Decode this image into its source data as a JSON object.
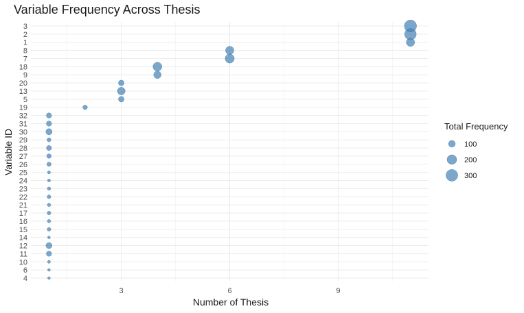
{
  "chart_data": {
    "type": "scatter",
    "title": "Variable Frequency Across Thesis",
    "xlabel": "Number of Thesis",
    "ylabel": "Variable ID",
    "xlim": [
      0.5,
      11.5
    ],
    "x_ticks": [
      3,
      6,
      9
    ],
    "y_categories": [
      "4",
      "6",
      "10",
      "11",
      "12",
      "14",
      "15",
      "16",
      "17",
      "21",
      "22",
      "23",
      "24",
      "25",
      "26",
      "27",
      "28",
      "29",
      "30",
      "31",
      "32",
      "19",
      "5",
      "13",
      "20",
      "9",
      "18",
      "7",
      "8",
      "1",
      "2",
      "3"
    ],
    "points": [
      {
        "id": "4",
        "x": 1,
        "freq": 10
      },
      {
        "id": "6",
        "x": 1,
        "freq": 15
      },
      {
        "id": "10",
        "x": 1,
        "freq": 20
      },
      {
        "id": "11",
        "x": 1,
        "freq": 60
      },
      {
        "id": "12",
        "x": 1,
        "freq": 80
      },
      {
        "id": "14",
        "x": 1,
        "freq": 12
      },
      {
        "id": "15",
        "x": 1,
        "freq": 30
      },
      {
        "id": "16",
        "x": 1,
        "freq": 25
      },
      {
        "id": "17",
        "x": 1,
        "freq": 30
      },
      {
        "id": "21",
        "x": 1,
        "freq": 25
      },
      {
        "id": "22",
        "x": 1,
        "freq": 30
      },
      {
        "id": "23",
        "x": 1,
        "freq": 25
      },
      {
        "id": "24",
        "x": 1,
        "freq": 20
      },
      {
        "id": "25",
        "x": 1,
        "freq": 20
      },
      {
        "id": "26",
        "x": 1,
        "freq": 40
      },
      {
        "id": "27",
        "x": 1,
        "freq": 45
      },
      {
        "id": "28",
        "x": 1,
        "freq": 55
      },
      {
        "id": "29",
        "x": 1,
        "freq": 35
      },
      {
        "id": "30",
        "x": 1,
        "freq": 85
      },
      {
        "id": "31",
        "x": 1,
        "freq": 60
      },
      {
        "id": "32",
        "x": 1,
        "freq": 60
      },
      {
        "id": "19",
        "x": 2,
        "freq": 45
      },
      {
        "id": "5",
        "x": 3,
        "freq": 70
      },
      {
        "id": "13",
        "x": 3,
        "freq": 130
      },
      {
        "id": "20",
        "x": 3,
        "freq": 70
      },
      {
        "id": "9",
        "x": 4,
        "freq": 120
      },
      {
        "id": "18",
        "x": 4,
        "freq": 170
      },
      {
        "id": "7",
        "x": 6,
        "freq": 180
      },
      {
        "id": "8",
        "x": 6,
        "freq": 150
      },
      {
        "id": "1",
        "x": 11,
        "freq": 150
      },
      {
        "id": "2",
        "x": 11,
        "freq": 290
      },
      {
        "id": "3",
        "x": 11,
        "freq": 320
      }
    ],
    "size_legend": {
      "title": "Total Frequency",
      "values": [
        100,
        200,
        300
      ],
      "labels": [
        "100",
        "200",
        "300"
      ]
    },
    "point_color": "#4682B4",
    "grid": true,
    "legend_position": "right"
  }
}
